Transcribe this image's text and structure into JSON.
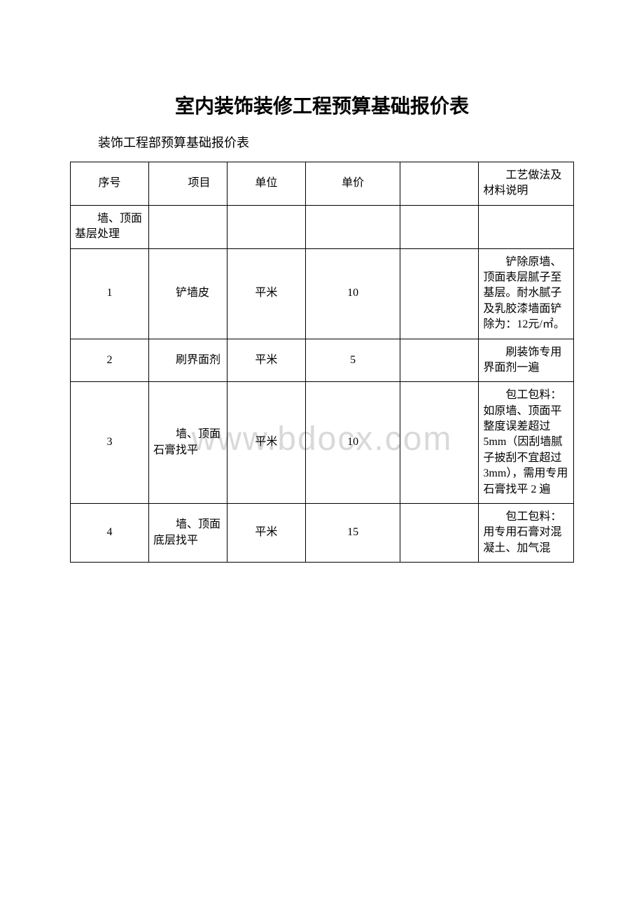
{
  "watermark": "www.bdocx.com",
  "title": "室内装饰装修工程预算基础报价表",
  "subtitle": "装饰工程部预算基础报价表",
  "table": {
    "headers": {
      "seq": "序号",
      "item": "项目",
      "unit": "单位",
      "price": "单价",
      "desc": "工艺做法及材料说明"
    },
    "section": "墙、顶面基层处理",
    "rows": [
      {
        "seq": "1",
        "item": "铲墙皮",
        "unit": "平米",
        "price": "10",
        "desc": "铲除原墙、顶面表层腻子至基层。耐水腻子及乳胶漆墙面铲除为：12元/㎡。"
      },
      {
        "seq": "2",
        "item": "刷界面剂",
        "unit": "平米",
        "price": "5",
        "desc": "刷装饰专用界面剂一遍"
      },
      {
        "seq": "3",
        "item": "墙、顶面石膏找平",
        "unit": "平米",
        "price": "10",
        "desc": "包工包料：如原墙、顶面平整度误差超过5mm（因刮墙腻子披刮不宜超过 3mm），需用专用石膏找平 2 遍"
      },
      {
        "seq": "4",
        "item": "墙、顶面底层找平",
        "unit": "平米",
        "price": "15",
        "desc": "包工包料：用专用石膏对混凝土、加气混"
      }
    ]
  }
}
